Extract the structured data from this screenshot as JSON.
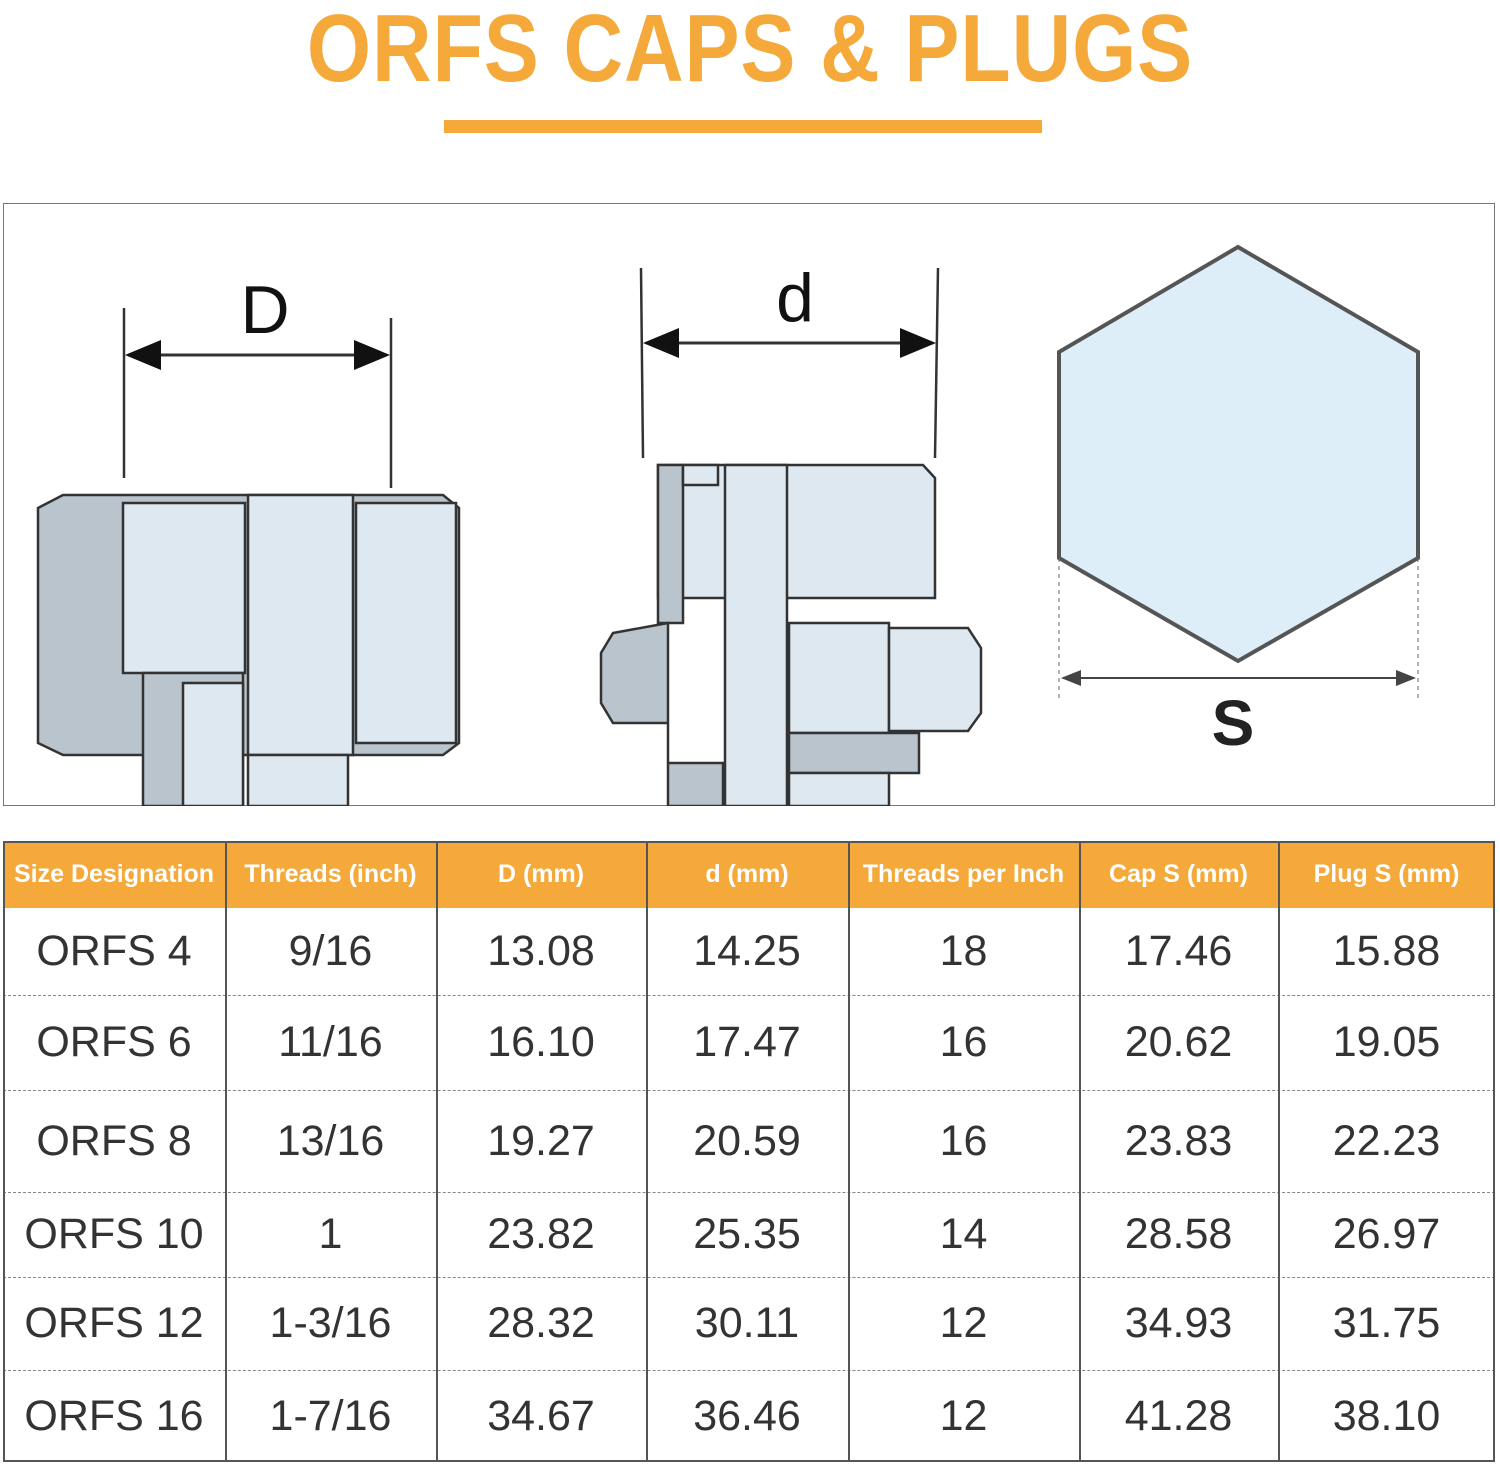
{
  "header": {
    "title": "ORFS CAPS & PLUGS"
  },
  "diagram": {
    "cap_label": "D",
    "plug_label": "d",
    "hex_label": "S"
  },
  "table": {
    "columns": [
      "Size Designation",
      "Threads (inch)",
      "D (mm)",
      "d (mm)",
      "Threads per Inch",
      "Cap S (mm)",
      "Plug S (mm)"
    ],
    "rows": [
      [
        "ORFS 4",
        "9/16",
        "13.08",
        "14.25",
        "18",
        "17.46",
        "15.88"
      ],
      [
        "ORFS 6",
        "11/16",
        "16.10",
        "17.47",
        "16",
        "20.62",
        "19.05"
      ],
      [
        "ORFS 8",
        "13/16",
        "19.27",
        "20.59",
        "16",
        "23.83",
        "22.23"
      ],
      [
        "ORFS 10",
        "1",
        "23.82",
        "25.35",
        "14",
        "28.58",
        "26.97"
      ],
      [
        "ORFS 12",
        "1-3/16",
        "28.32",
        "30.11",
        "12",
        "34.93",
        "31.75"
      ],
      [
        "ORFS 16",
        "1-7/16",
        "34.67",
        "36.46",
        "12",
        "41.28",
        "38.10"
      ]
    ]
  }
}
